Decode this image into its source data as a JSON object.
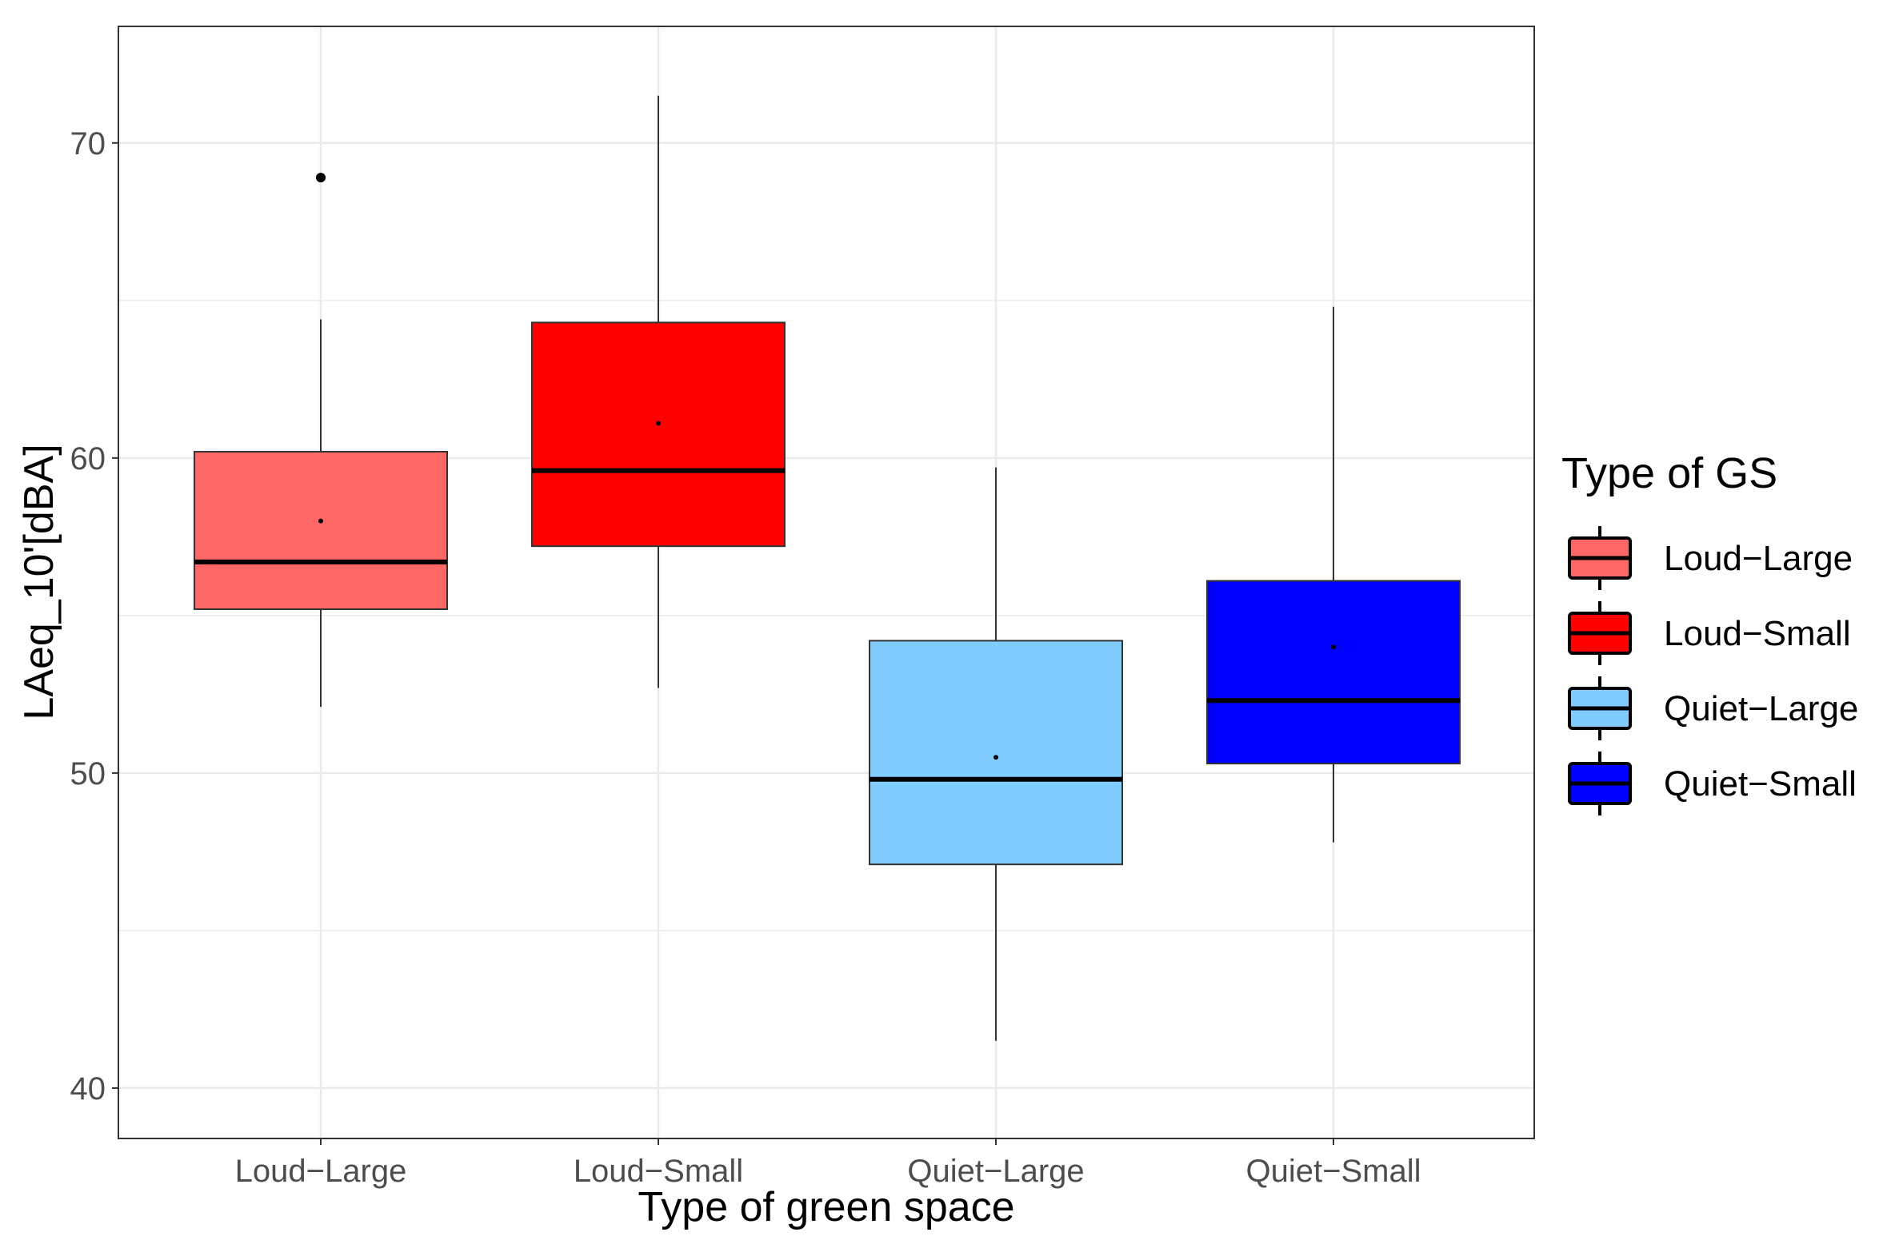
{
  "chart_data": {
    "type": "boxplot",
    "title": "",
    "xlabel": "Type of green space",
    "ylabel": "LAeq_10'[dBA]",
    "ylim": [
      38.4,
      73.7
    ],
    "yticks": [
      40,
      50,
      60,
      70
    ],
    "categories": [
      "Loud−Large",
      "Loud−Small",
      "Quiet−Large",
      "Quiet−Small"
    ],
    "grid": true,
    "legend": {
      "title": "Type of GS",
      "position": "right",
      "entries": [
        "Loud−Large",
        "Loud−Small",
        "Quiet−Large",
        "Quiet−Small"
      ]
    },
    "series": [
      {
        "name": "Loud−Large",
        "color": "#ff6666",
        "whisker_low": 52.1,
        "q1": 55.2,
        "median": 56.7,
        "q3": 60.2,
        "whisker_high": 64.4,
        "mean": 58.0,
        "outliers": [
          68.9
        ]
      },
      {
        "name": "Loud−Small",
        "color": "#ff0000",
        "whisker_low": 52.7,
        "q1": 57.2,
        "median": 59.6,
        "q3": 64.3,
        "whisker_high": 71.5,
        "mean": 61.1,
        "outliers": []
      },
      {
        "name": "Quiet−Large",
        "color": "#80ccff",
        "whisker_low": 41.5,
        "q1": 47.1,
        "median": 49.8,
        "q3": 54.2,
        "whisker_high": 59.7,
        "mean": 50.5,
        "outliers": []
      },
      {
        "name": "Quiet−Small",
        "color": "#0000ff",
        "whisker_low": 47.8,
        "q1": 50.3,
        "median": 52.3,
        "q3": 56.1,
        "whisker_high": 64.8,
        "mean": 54.0,
        "outliers": []
      }
    ]
  }
}
